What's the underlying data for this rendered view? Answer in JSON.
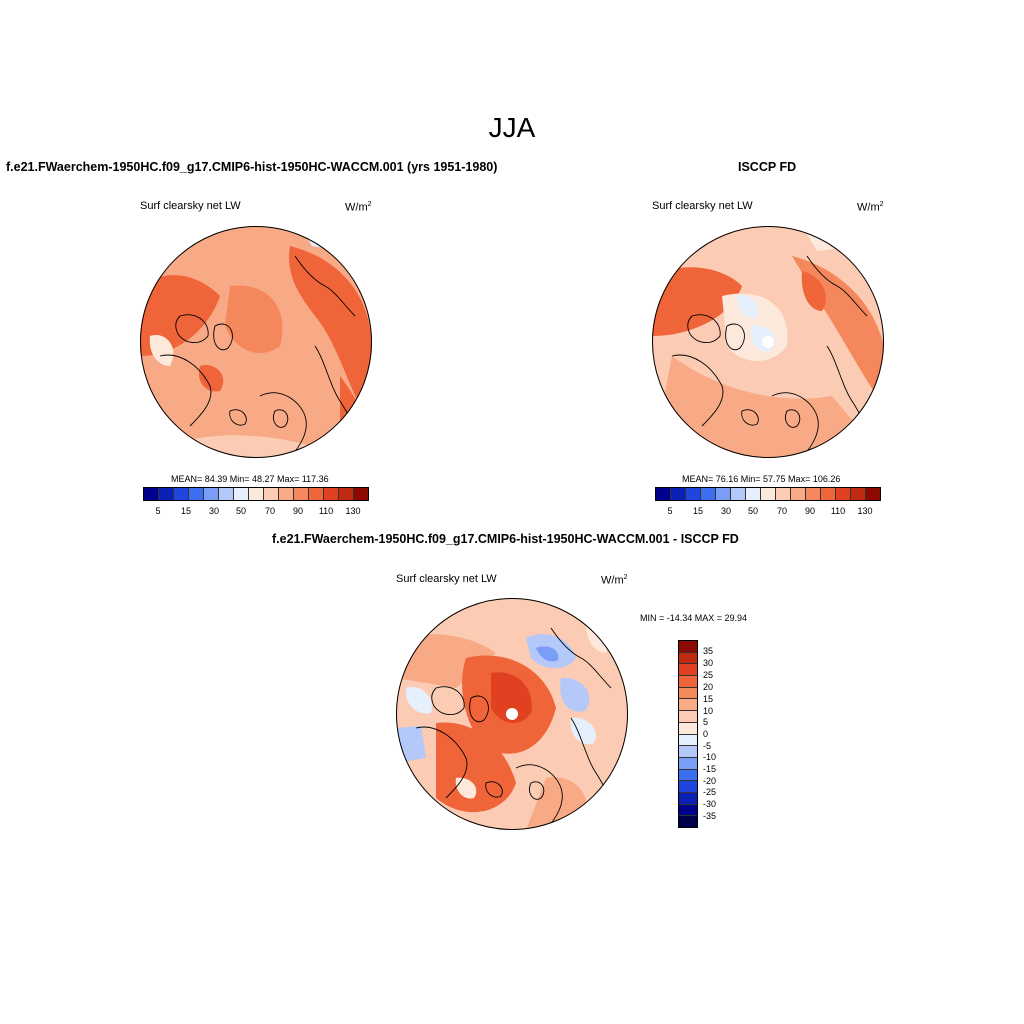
{
  "main_title": "JJA",
  "panels": [
    {
      "title": "f.e21.FWaerchem-1950HC.f09_g17.CMIP6-hist-1950HC-WACCM.001 (yrs 1951-1980)",
      "variable": "Surf clearsky net LW",
      "units": "W/m",
      "units_exp": "2",
      "stats": "MEAN=  84.39  Min=  48.27  Max= 117.36",
      "colorbar_ticks": [
        "5",
        "15",
        "30",
        "50",
        "70",
        "90",
        "110",
        "130"
      ]
    },
    {
      "title": "ISCCP FD",
      "variable": "Surf clearsky net LW",
      "units": "W/m",
      "units_exp": "2",
      "stats": "MEAN=  76.16  Min=  57.75  Max= 106.26",
      "colorbar_ticks": [
        "5",
        "15",
        "30",
        "50",
        "70",
        "90",
        "110",
        "130"
      ]
    },
    {
      "title": "f.e21.FWaerchem-1950HC.f09_g17.CMIP6-hist-1950HC-WACCM.001 - ISCCP FD",
      "variable": "Surf clearsky net LW",
      "units": "W/m",
      "units_exp": "2",
      "stats": "MIN = -14.34 MAX =  29.94",
      "colorbar_ticks": [
        "35",
        "30",
        "25",
        "20",
        "15",
        "10",
        "5",
        "0",
        "-5",
        "-10",
        "-15",
        "-20",
        "-25",
        "-30",
        "-35"
      ]
    }
  ],
  "colors": {
    "abs_scale": [
      "#00008c",
      "#0a1fb4",
      "#1e46dc",
      "#3c6ef0",
      "#7a9ef5",
      "#b4c8fa",
      "#e6f0fc",
      "#fde9dc",
      "#fbcbb4",
      "#f8aa86",
      "#f5875c",
      "#f0643a",
      "#e04120",
      "#c02a10",
      "#8c0a02"
    ],
    "diff_scale": [
      "#8c0a02",
      "#c02a10",
      "#e04120",
      "#f0643a",
      "#f5875c",
      "#f8aa86",
      "#fbcbb4",
      "#fde9dc",
      "#e6f0fc",
      "#b4c8fa",
      "#7a9ef5",
      "#3c6ef0",
      "#1e46dc",
      "#0a1fb4",
      "#00008c"
    ],
    "polar_hole": "#ffffff",
    "coastline": "#000000"
  }
}
